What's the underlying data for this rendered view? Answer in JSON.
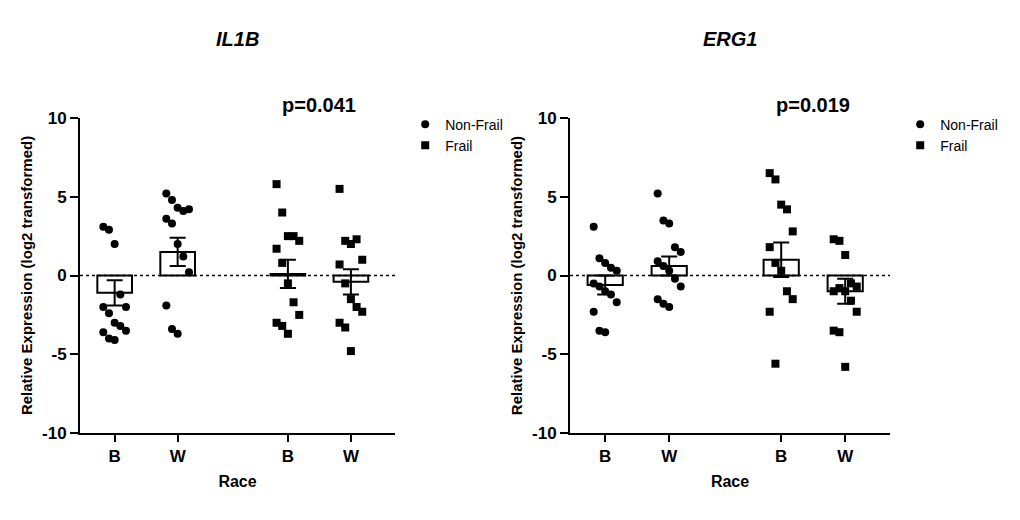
{
  "chart_data": [
    {
      "type": "bar",
      "title": "IL1B",
      "x_label": "Race",
      "y_label": "Relative Expression (log2 transformed)",
      "categories": [
        "B",
        "W",
        "B",
        "W"
      ],
      "values": [
        -1.1,
        1.5,
        0.1,
        -0.4
      ],
      "errors": [
        0.8,
        0.9,
        0.9,
        0.8
      ],
      "color": "#000000",
      "baseline": 0,
      "annotations": [
        "p=0.041"
      ],
      "ylim": [
        -10,
        10
      ],
      "yticks": [
        -10,
        -5,
        0,
        5,
        10
      ],
      "grid": false,
      "legend": "top right",
      "series": [
        {
          "name": "Non-Frail",
          "marker": "circle",
          "color": "#000000",
          "points": [
            [
              3.1,
              2.9,
              2.0,
              -1.2,
              -2.0,
              -2.0,
              -2.4,
              -3.0,
              -3.2,
              -3.5,
              -3.6,
              -4.0,
              -4.1
            ],
            [
              5.2,
              4.8,
              4.3,
              4.1,
              4.2,
              3.6,
              3.3,
              2.0,
              1.2,
              0.2,
              -1.9,
              -3.4,
              -3.7
            ]
          ]
        },
        {
          "name": "Frail",
          "marker": "square",
          "color": "#000000",
          "points": [
            [
              5.8,
              4.0,
              2.5,
              2.5,
              2.2,
              1.7,
              0.8,
              -0.5,
              -1.7,
              -2.5,
              -3.0,
              -3.2,
              -3.7
            ],
            [
              5.5,
              2.2,
              2.0,
              2.3,
              1.0,
              0.7,
              -0.5,
              -1.5,
              -2.0,
              -2.3,
              -3.0,
              -3.3,
              -4.8
            ]
          ]
        }
      ]
    },
    {
      "type": "bar",
      "title": "ERG1",
      "x_label": "Race",
      "y_label": "Relative Expression (log2 transformed)",
      "categories": [
        "B",
        "W",
        "B",
        "W"
      ],
      "values": [
        -0.6,
        0.6,
        1.0,
        -1.0
      ],
      "errors": [
        0.6,
        0.6,
        1.1,
        0.8
      ],
      "color": "#000000",
      "baseline": 0,
      "annotations": [
        "p=0.019"
      ],
      "ylim": [
        -10,
        10
      ],
      "yticks": [
        -10,
        -5,
        0,
        5,
        10
      ],
      "grid": false,
      "legend": "top right",
      "series": [
        {
          "name": "Non-Frail",
          "marker": "circle",
          "color": "#000000",
          "points": [
            [
              3.1,
              1.1,
              0.8,
              0.5,
              0.3,
              -0.5,
              -0.7,
              -1.0,
              -1.2,
              -1.7,
              -2.3,
              -3.5,
              -3.6
            ],
            [
              5.2,
              3.5,
              3.3,
              1.8,
              1.5,
              0.9,
              0.6,
              0.3,
              -0.2,
              -0.7,
              -1.5,
              -1.8,
              -2.0
            ]
          ]
        },
        {
          "name": "Frail",
          "marker": "square",
          "color": "#000000",
          "points": [
            [
              6.5,
              6.1,
              4.5,
              4.2,
              2.8,
              1.8,
              0.8,
              0.3,
              -1.0,
              -1.5,
              -2.3,
              -5.6
            ],
            [
              2.3,
              2.2,
              1.3,
              -0.5,
              -0.7,
              -1.0,
              -0.8,
              -1.0,
              -1.6,
              -2.3,
              -3.5,
              -3.6,
              -5.8
            ]
          ]
        }
      ]
    }
  ]
}
